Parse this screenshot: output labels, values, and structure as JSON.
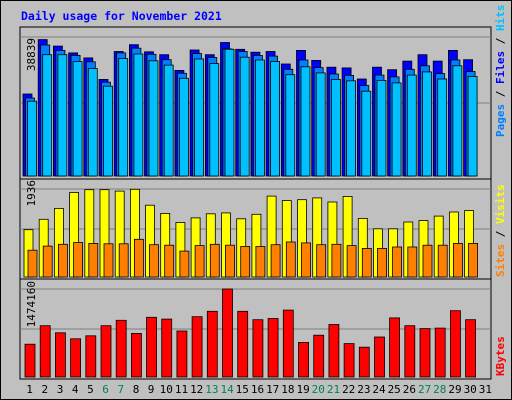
{
  "title": "Daily usage for November 2021",
  "colors": {
    "hits": "#00c0ff",
    "files": "#0000ff",
    "pages": "#0080ff",
    "visits": "#ffff00",
    "sites": "#ff8000",
    "kbytes": "#ff0000",
    "weekend_label": "#00805c",
    "label": "#000000"
  },
  "chart_data": [
    {
      "type": "bar",
      "panel": "hits-files-pages",
      "categories": [
        "1",
        "2",
        "3",
        "4",
        "5",
        "6",
        "7",
        "8",
        "9",
        "10",
        "11",
        "12",
        "13",
        "14",
        "15",
        "16",
        "17",
        "18",
        "19",
        "20",
        "21",
        "22",
        "23",
        "24",
        "25",
        "26",
        "27",
        "28",
        "29",
        "30",
        "31"
      ],
      "weekend_days": [
        "6",
        "7",
        "13",
        "14",
        "20",
        "21",
        "27",
        "28"
      ],
      "ymax_label": "38839",
      "ylim": [
        0,
        38839
      ],
      "side_label": {
        "pages": "Pages",
        "files": "Files",
        "hits": "Hits",
        "sep": " / "
      },
      "series": [
        {
          "name": "Hits",
          "values": [
            22900,
            38100,
            36300,
            34400,
            33000,
            27000,
            34800,
            36700,
            34700,
            33900,
            29500,
            35200,
            33900,
            37300,
            35400,
            34600,
            34800,
            31300,
            35100,
            32300,
            30400,
            30200,
            27100,
            30400,
            29700,
            32100,
            33900,
            32100,
            35100,
            32500,
            0
          ]
        },
        {
          "name": "Files",
          "values": [
            21800,
            36600,
            35100,
            33700,
            31900,
            26200,
            34400,
            35700,
            34000,
            32500,
            28700,
            34200,
            33100,
            35500,
            34800,
            33700,
            33500,
            29800,
            32400,
            30300,
            28500,
            28100,
            25300,
            28200,
            27700,
            29800,
            30800,
            28600,
            32400,
            29200,
            0
          ]
        },
        {
          "name": "Pages",
          "values": [
            20900,
            33900,
            33900,
            32000,
            30000,
            25100,
            32800,
            34100,
            32200,
            31000,
            27300,
            32700,
            31400,
            35400,
            33200,
            32400,
            32000,
            28300,
            30500,
            28800,
            27000,
            26600,
            23700,
            26700,
            26000,
            28200,
            29100,
            27100,
            30800,
            27800,
            0
          ]
        }
      ]
    },
    {
      "type": "bar",
      "panel": "visits-sites",
      "categories": [
        "1",
        "2",
        "3",
        "4",
        "5",
        "6",
        "7",
        "8",
        "9",
        "10",
        "11",
        "12",
        "13",
        "14",
        "15",
        "16",
        "17",
        "18",
        "19",
        "20",
        "21",
        "22",
        "23",
        "24",
        "25",
        "26",
        "27",
        "28",
        "29",
        "30",
        "31"
      ],
      "ymax_label": "1936",
      "ylim": [
        0,
        1936
      ],
      "side_label": {
        "sites": "Sites",
        "visits": "Visits",
        "sep": " / "
      },
      "series": [
        {
          "name": "Visits",
          "values": [
            1040,
            1270,
            1510,
            1860,
            1920,
            1920,
            1890,
            1930,
            1580,
            1400,
            1200,
            1300,
            1390,
            1410,
            1280,
            1380,
            1780,
            1680,
            1700,
            1740,
            1650,
            1770,
            1290,
            1060,
            1060,
            1210,
            1240,
            1340,
            1430,
            1460,
            0
          ]
        },
        {
          "name": "Sites",
          "values": [
            590,
            680,
            720,
            760,
            740,
            730,
            730,
            830,
            710,
            700,
            570,
            690,
            720,
            700,
            670,
            670,
            710,
            770,
            750,
            710,
            720,
            690,
            630,
            630,
            660,
            660,
            700,
            700,
            740,
            740,
            0
          ]
        }
      ]
    },
    {
      "type": "bar",
      "panel": "kbytes",
      "categories": [
        "1",
        "2",
        "3",
        "4",
        "5",
        "6",
        "7",
        "8",
        "9",
        "10",
        "11",
        "12",
        "13",
        "14",
        "15",
        "16",
        "17",
        "18",
        "19",
        "20",
        "21",
        "22",
        "23",
        "24",
        "25",
        "26",
        "27",
        "28",
        "29",
        "30",
        "31"
      ],
      "ymax_label": "1474160",
      "ylim": [
        0,
        1474160
      ],
      "side_label": {
        "kbytes": "KBytes"
      },
      "series": [
        {
          "name": "KBytes",
          "values": [
            550000,
            860000,
            740000,
            640000,
            690000,
            860000,
            950000,
            730000,
            1000000,
            970000,
            770000,
            1010000,
            1100000,
            1474160,
            1100000,
            960000,
            980000,
            1120000,
            580000,
            700000,
            880000,
            560000,
            500000,
            670000,
            990000,
            860000,
            810000,
            820000,
            1110000,
            960000,
            0
          ]
        }
      ]
    }
  ]
}
